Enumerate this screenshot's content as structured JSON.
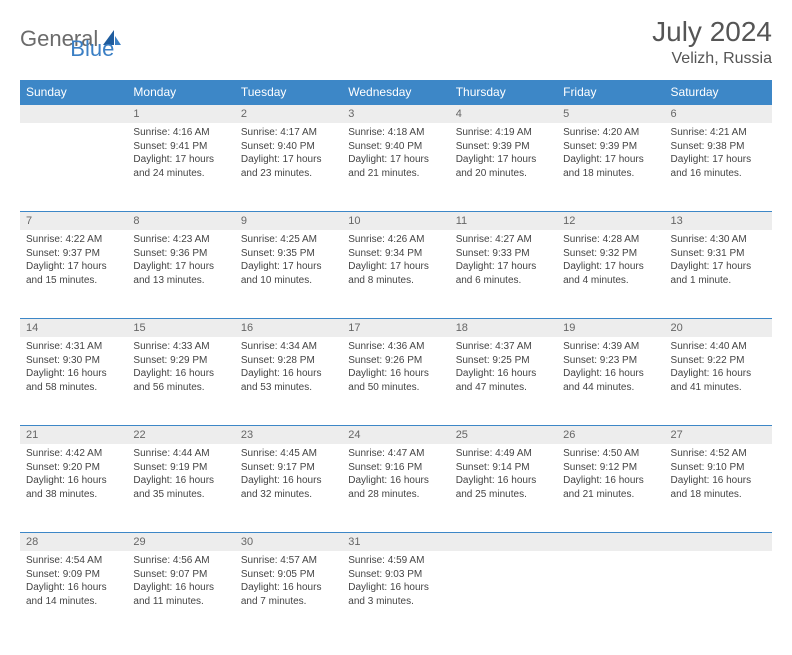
{
  "logo": {
    "text1": "General",
    "text2": "Blue"
  },
  "title": "July 2024",
  "location": "Velizh, Russia",
  "header_color": "#3d87c7",
  "daynum_bg": "#ededed",
  "columns": [
    "Sunday",
    "Monday",
    "Tuesday",
    "Wednesday",
    "Thursday",
    "Friday",
    "Saturday"
  ],
  "weeks": [
    [
      null,
      {
        "n": "1",
        "sr": "4:16 AM",
        "ss": "9:41 PM",
        "dl": "17 hours and 24 minutes."
      },
      {
        "n": "2",
        "sr": "4:17 AM",
        "ss": "9:40 PM",
        "dl": "17 hours and 23 minutes."
      },
      {
        "n": "3",
        "sr": "4:18 AM",
        "ss": "9:40 PM",
        "dl": "17 hours and 21 minutes."
      },
      {
        "n": "4",
        "sr": "4:19 AM",
        "ss": "9:39 PM",
        "dl": "17 hours and 20 minutes."
      },
      {
        "n": "5",
        "sr": "4:20 AM",
        "ss": "9:39 PM",
        "dl": "17 hours and 18 minutes."
      },
      {
        "n": "6",
        "sr": "4:21 AM",
        "ss": "9:38 PM",
        "dl": "17 hours and 16 minutes."
      }
    ],
    [
      {
        "n": "7",
        "sr": "4:22 AM",
        "ss": "9:37 PM",
        "dl": "17 hours and 15 minutes."
      },
      {
        "n": "8",
        "sr": "4:23 AM",
        "ss": "9:36 PM",
        "dl": "17 hours and 13 minutes."
      },
      {
        "n": "9",
        "sr": "4:25 AM",
        "ss": "9:35 PM",
        "dl": "17 hours and 10 minutes."
      },
      {
        "n": "10",
        "sr": "4:26 AM",
        "ss": "9:34 PM",
        "dl": "17 hours and 8 minutes."
      },
      {
        "n": "11",
        "sr": "4:27 AM",
        "ss": "9:33 PM",
        "dl": "17 hours and 6 minutes."
      },
      {
        "n": "12",
        "sr": "4:28 AM",
        "ss": "9:32 PM",
        "dl": "17 hours and 4 minutes."
      },
      {
        "n": "13",
        "sr": "4:30 AM",
        "ss": "9:31 PM",
        "dl": "17 hours and 1 minute."
      }
    ],
    [
      {
        "n": "14",
        "sr": "4:31 AM",
        "ss": "9:30 PM",
        "dl": "16 hours and 58 minutes."
      },
      {
        "n": "15",
        "sr": "4:33 AM",
        "ss": "9:29 PM",
        "dl": "16 hours and 56 minutes."
      },
      {
        "n": "16",
        "sr": "4:34 AM",
        "ss": "9:28 PM",
        "dl": "16 hours and 53 minutes."
      },
      {
        "n": "17",
        "sr": "4:36 AM",
        "ss": "9:26 PM",
        "dl": "16 hours and 50 minutes."
      },
      {
        "n": "18",
        "sr": "4:37 AM",
        "ss": "9:25 PM",
        "dl": "16 hours and 47 minutes."
      },
      {
        "n": "19",
        "sr": "4:39 AM",
        "ss": "9:23 PM",
        "dl": "16 hours and 44 minutes."
      },
      {
        "n": "20",
        "sr": "4:40 AM",
        "ss": "9:22 PM",
        "dl": "16 hours and 41 minutes."
      }
    ],
    [
      {
        "n": "21",
        "sr": "4:42 AM",
        "ss": "9:20 PM",
        "dl": "16 hours and 38 minutes."
      },
      {
        "n": "22",
        "sr": "4:44 AM",
        "ss": "9:19 PM",
        "dl": "16 hours and 35 minutes."
      },
      {
        "n": "23",
        "sr": "4:45 AM",
        "ss": "9:17 PM",
        "dl": "16 hours and 32 minutes."
      },
      {
        "n": "24",
        "sr": "4:47 AM",
        "ss": "9:16 PM",
        "dl": "16 hours and 28 minutes."
      },
      {
        "n": "25",
        "sr": "4:49 AM",
        "ss": "9:14 PM",
        "dl": "16 hours and 25 minutes."
      },
      {
        "n": "26",
        "sr": "4:50 AM",
        "ss": "9:12 PM",
        "dl": "16 hours and 21 minutes."
      },
      {
        "n": "27",
        "sr": "4:52 AM",
        "ss": "9:10 PM",
        "dl": "16 hours and 18 minutes."
      }
    ],
    [
      {
        "n": "28",
        "sr": "4:54 AM",
        "ss": "9:09 PM",
        "dl": "16 hours and 14 minutes."
      },
      {
        "n": "29",
        "sr": "4:56 AM",
        "ss": "9:07 PM",
        "dl": "16 hours and 11 minutes."
      },
      {
        "n": "30",
        "sr": "4:57 AM",
        "ss": "9:05 PM",
        "dl": "16 hours and 7 minutes."
      },
      {
        "n": "31",
        "sr": "4:59 AM",
        "ss": "9:03 PM",
        "dl": "16 hours and 3 minutes."
      },
      null,
      null,
      null
    ]
  ],
  "labels": {
    "sunrise": "Sunrise:",
    "sunset": "Sunset:",
    "daylight": "Daylight:"
  }
}
